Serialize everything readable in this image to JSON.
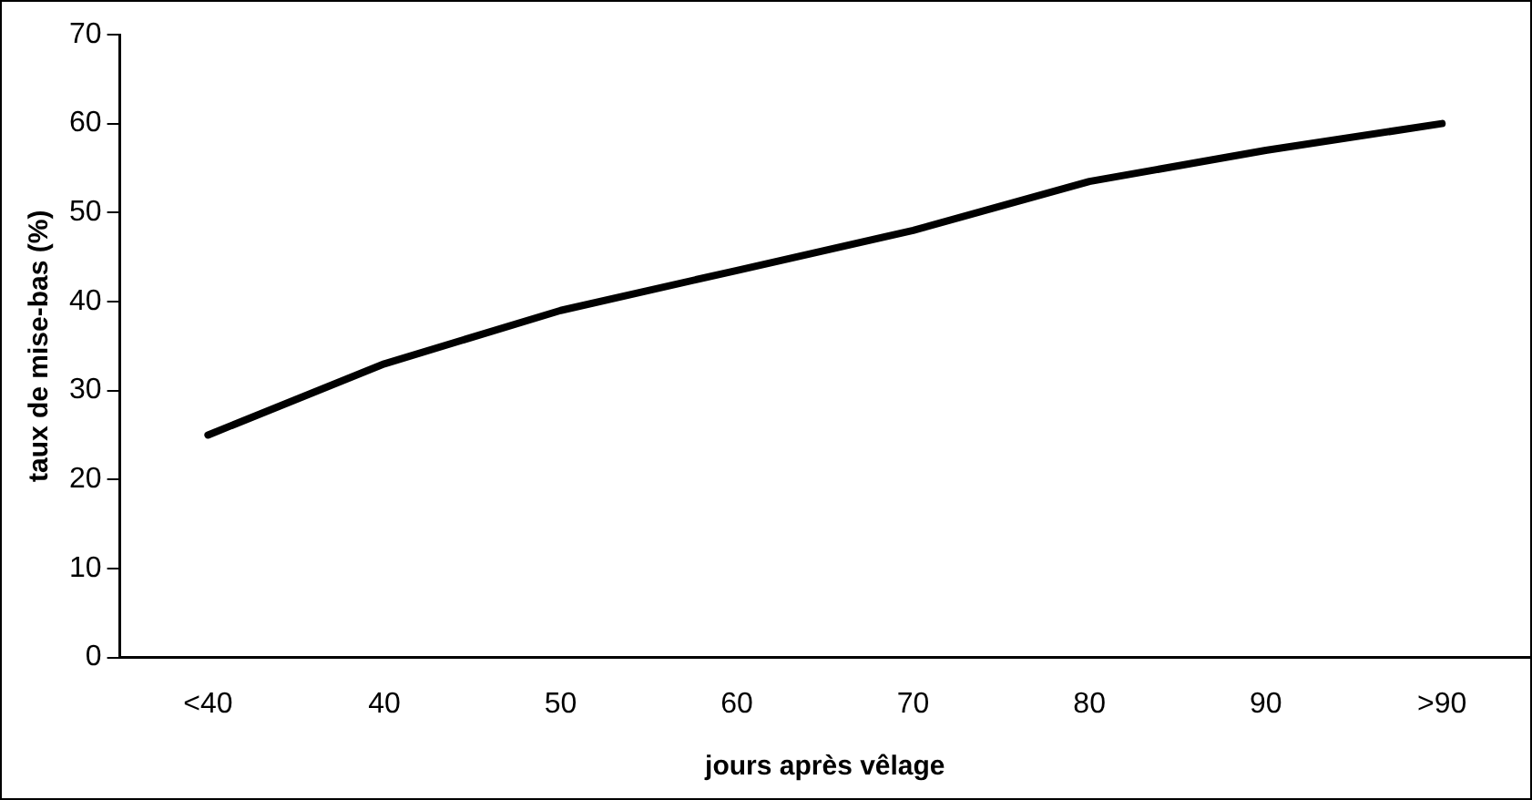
{
  "chart_data": {
    "type": "line",
    "xlabel": "jours après vêlage",
    "ylabel": "taux de mise-bas (%)",
    "categories": [
      "<40",
      "40",
      "50",
      "60",
      "70",
      "80",
      "90",
      ">90"
    ],
    "series": [
      {
        "color": "#000000",
        "values": [
          25,
          33,
          39,
          43.5,
          48,
          53.5,
          57,
          60
        ]
      }
    ],
    "ylim": [
      0,
      70
    ],
    "yticks": [
      0,
      10,
      20,
      30,
      40,
      50,
      60,
      70
    ],
    "grid": false,
    "legend": false,
    "marker": "none",
    "line_style": "solid"
  }
}
